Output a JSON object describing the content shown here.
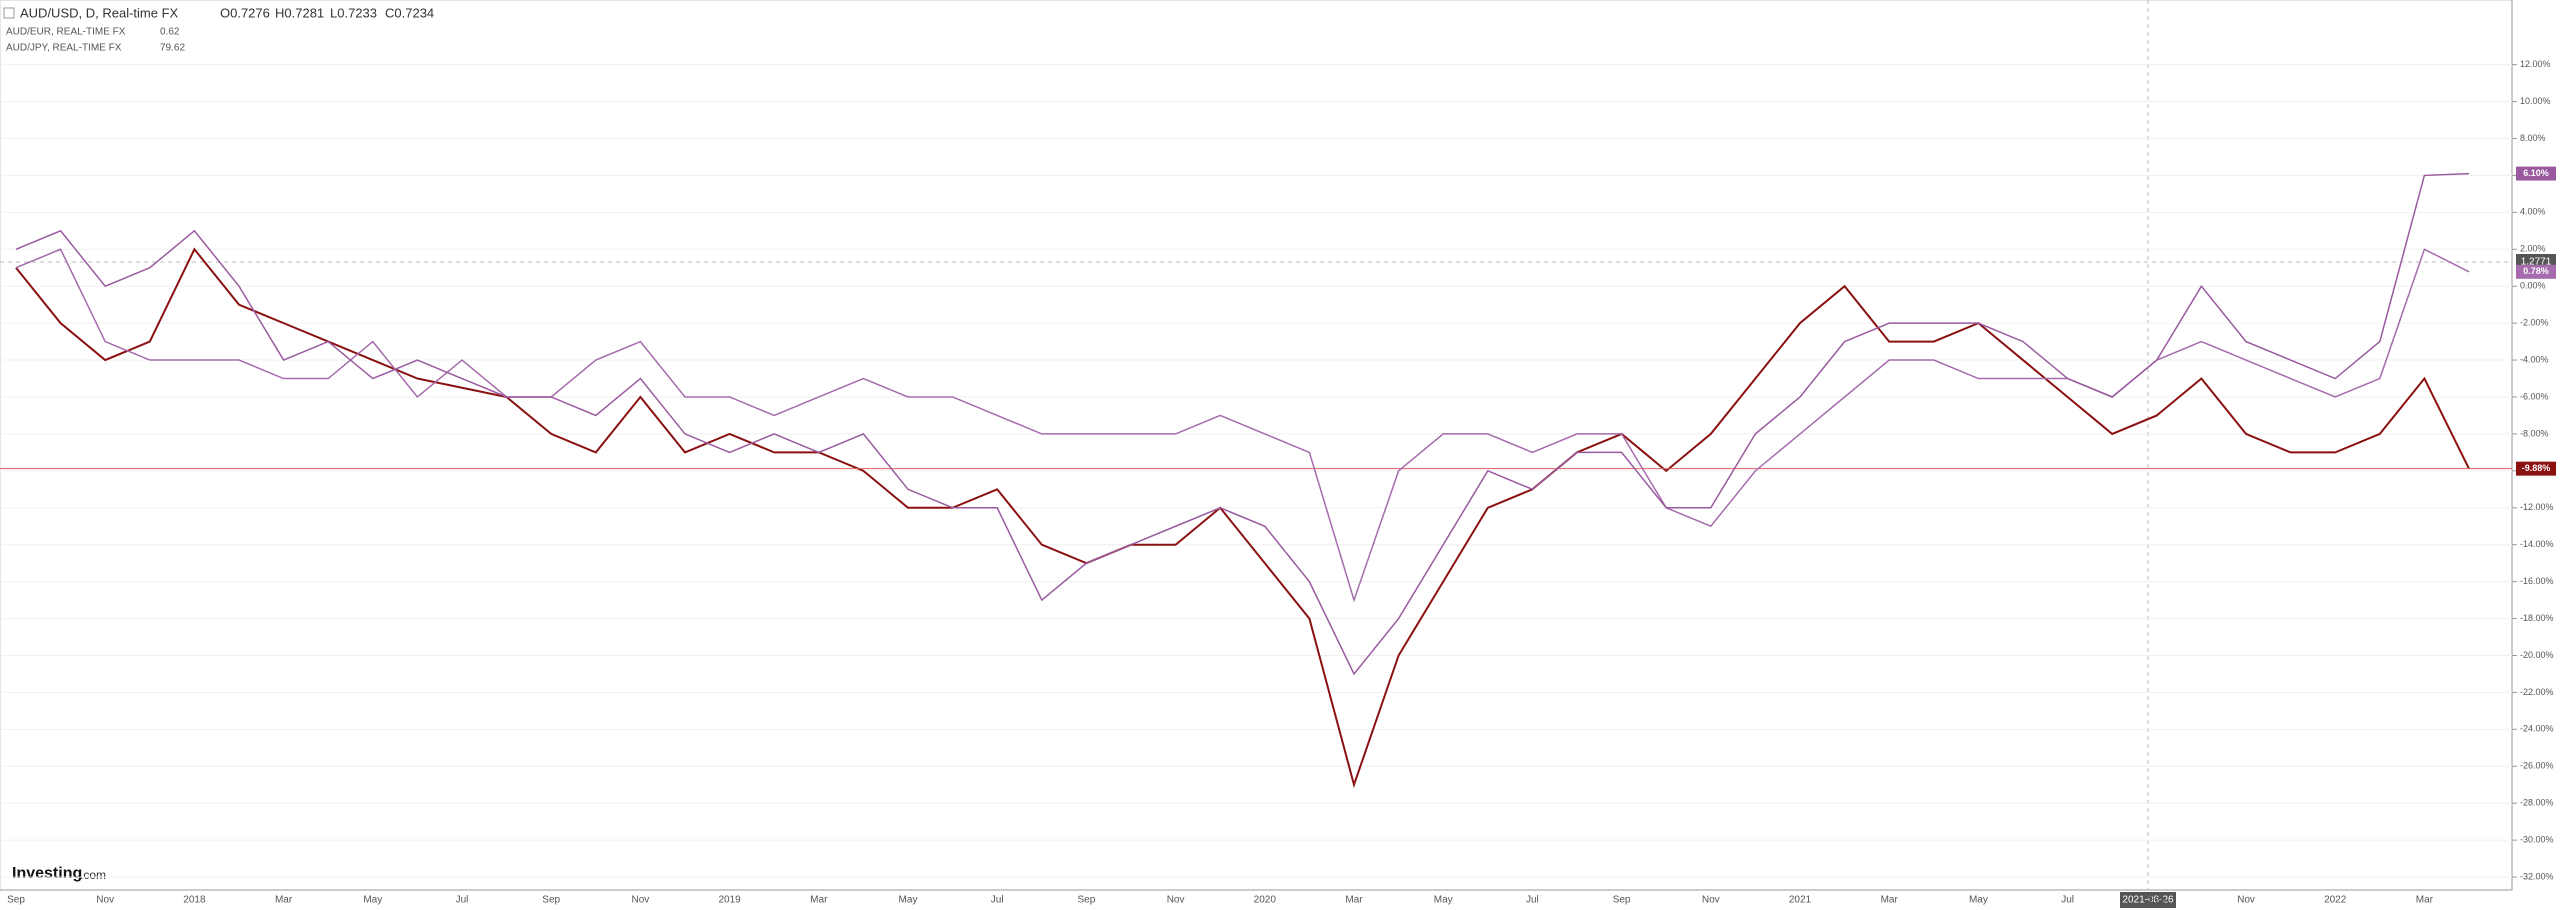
{
  "header": {
    "symbol": "AUD/USD, D, Real-time FX",
    "open": "O0.7276",
    "high": "H0.7281",
    "low": "L0.7233",
    "close": "C0.7234",
    "overlays": [
      {
        "name": "AUD/EUR, REAL-TIME FX",
        "value": "0.62"
      },
      {
        "name": "AUD/JPY, REAL-TIME FX",
        "value": "79.62"
      }
    ]
  },
  "logo": {
    "brand": "Investing",
    "suffix": ".com"
  },
  "crosshair": {
    "x_label": "2021-08-26",
    "y_label": "1.2771"
  },
  "chart_data": {
    "type": "line",
    "categories": [
      "Sep",
      null,
      "Nov",
      null,
      "2018",
      null,
      "Mar",
      null,
      "May",
      null,
      "Jul",
      null,
      "Sep",
      null,
      "Nov",
      null,
      "2019",
      null,
      "Mar",
      null,
      "May",
      null,
      "Jul",
      null,
      "Sep",
      null,
      "Nov",
      null,
      "2020",
      null,
      "Mar",
      null,
      "May",
      null,
      "Jul",
      null,
      "Sep",
      null,
      "Nov",
      null,
      "2021",
      null,
      "Mar",
      null,
      "May",
      null,
      "Jul",
      null,
      "Sep",
      null,
      "Nov",
      null,
      "2022",
      null,
      "Mar",
      null
    ],
    "series": [
      {
        "name": "AUD/USD",
        "color": "#8b1010",
        "last_label": "-9.88%",
        "values": [
          1,
          -2,
          -4,
          -3,
          2,
          -1,
          -2,
          -3,
          -4,
          -5,
          -5.5,
          -6,
          -8,
          -9,
          -6,
          -9,
          -8,
          -9,
          -9,
          -10,
          -12,
          -12,
          -11,
          -14,
          -15,
          -14,
          -14,
          -12,
          -15,
          -18,
          -27,
          -20,
          -16,
          -12,
          -11,
          -9,
          -8,
          -10,
          -8,
          -5,
          -2,
          0,
          -3,
          -3,
          -2,
          -4,
          -6,
          -8,
          -7,
          -5,
          -8,
          -9,
          -9,
          -8,
          -5,
          -9.88
        ]
      },
      {
        "name": "AUD/EUR",
        "color": "#a66bad",
        "last_label": "0.78%",
        "values": [
          1,
          2,
          -3,
          -4,
          -4,
          -4,
          -5,
          -5,
          -3,
          -6,
          -4,
          -6,
          -6,
          -4,
          -3,
          -6,
          -6,
          -7,
          -6,
          -5,
          -6,
          -6,
          -7,
          -8,
          -8,
          -8,
          -8,
          -7,
          -8,
          -9,
          -17,
          -10,
          -8,
          -8,
          -9,
          -8,
          -8,
          -12,
          -13,
          -10,
          -8,
          -6,
          -4,
          -4,
          -5,
          -5,
          -5,
          -6,
          -4,
          -3,
          -4,
          -5,
          -6,
          -5,
          2,
          0.78
        ]
      },
      {
        "name": "AUD/JPY",
        "color": "#9a5aa0",
        "last_label": "6.10%",
        "values": [
          2,
          3,
          0,
          1,
          3,
          0,
          -4,
          -3,
          -5,
          -4,
          -5,
          -6,
          -6,
          -7,
          -5,
          -8,
          -9,
          -8,
          -9,
          -8,
          -11,
          -12,
          -12,
          -17,
          -15,
          -14,
          -13,
          -12,
          -13,
          -16,
          -21,
          -18,
          -14,
          -10,
          -11,
          -9,
          -9,
          -12,
          -12,
          -8,
          -6,
          -3,
          -2,
          -2,
          -2,
          -3,
          -5,
          -6,
          -4,
          0,
          -3,
          -4,
          -5,
          -3,
          6,
          6.1
        ]
      }
    ],
    "ylim": [
      -32.7,
      15.5
    ],
    "yticks": [
      {
        "value": 12,
        "label": "12.00%"
      },
      {
        "value": 10,
        "label": "10.00%"
      },
      {
        "value": 8,
        "label": "8.00%"
      },
      {
        "value": 6,
        "label": "6.00%"
      },
      {
        "value": 4,
        "label": "4.00%"
      },
      {
        "value": 2,
        "label": "2.00%"
      },
      {
        "value": 0,
        "label": "0.00%"
      },
      {
        "value": -2,
        "label": "-2.00%"
      },
      {
        "value": -4,
        "label": "-4.00%"
      },
      {
        "value": -6,
        "label": "-6.00%"
      },
      {
        "value": -8,
        "label": "-8.00%"
      },
      {
        "value": -10,
        "label": "-10.00%"
      },
      {
        "value": -12,
        "label": "-12.00%"
      },
      {
        "value": -14,
        "label": "-14.00%"
      },
      {
        "value": -16,
        "label": "-16.00%"
      },
      {
        "value": -18,
        "label": "-18.00%"
      },
      {
        "value": -20,
        "label": "-20.00%"
      },
      {
        "value": -22,
        "label": "-22.00%"
      },
      {
        "value": -24,
        "label": "-24.00%"
      },
      {
        "value": -26,
        "label": "-26.00%"
      },
      {
        "value": -28,
        "label": "-28.00%"
      },
      {
        "value": -30,
        "label": "-30.00%"
      },
      {
        "value": -32,
        "label": "-32.00%"
      }
    ],
    "grid": true
  }
}
